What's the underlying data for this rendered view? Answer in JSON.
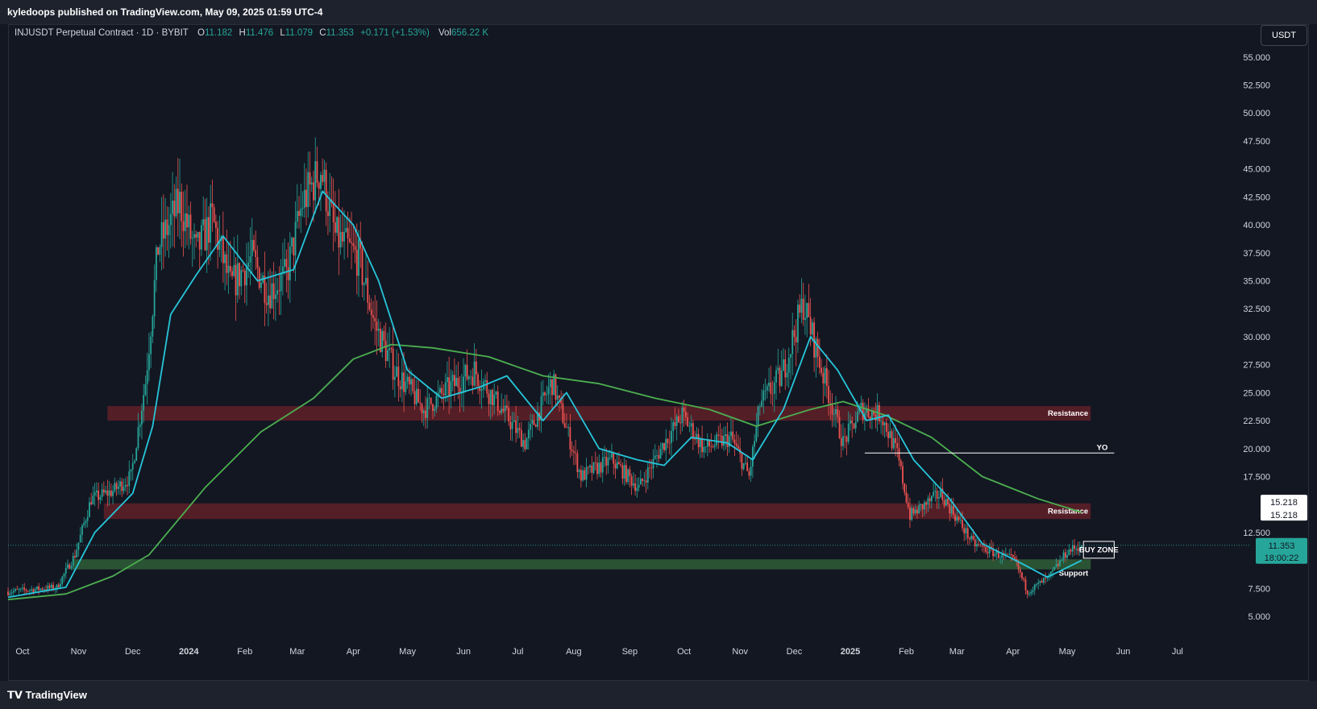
{
  "header": {
    "published": "kyledoops published on TradingView.com, May 09, 2025 01:59 UTC-4"
  },
  "legend": {
    "symbol": "INJUSDT Perpetual Contract · 1D · BYBIT",
    "o_label": "O",
    "o_value": "11.182",
    "h_label": "H",
    "h_value": "11.476",
    "l_label": "L",
    "l_value": "11.079",
    "c_label": "C",
    "c_value": "11.353",
    "change": "+0.171 (+1.53%)",
    "vol_label": "Vol",
    "vol_value": "656.22 K"
  },
  "currency_button": "USDT",
  "footer": {
    "brand": "TradingView"
  },
  "colors": {
    "background": "#131722",
    "up": "#26a69a",
    "down": "#ef5350",
    "ema_fast": "#26c6da",
    "ema_slow": "#4caf50",
    "resistance_zone": "#5c1f28",
    "support_zone": "#2e5a36",
    "price_tag": "#26a69a",
    "ma_tag": "#ffffff"
  },
  "chart_data": {
    "type": "candlestick",
    "title": "INJUSDT Perpetual Contract · 1D · BYBIT",
    "ylabel": "USDT",
    "ylim": [
      3.2,
      56.5
    ],
    "yticks": [
      "55.000",
      "52.500",
      "50.000",
      "47.500",
      "45.000",
      "42.500",
      "40.000",
      "37.500",
      "35.000",
      "32.500",
      "30.000",
      "27.500",
      "25.000",
      "22.500",
      "20.000",
      "17.500",
      "12.500",
      "7.500",
      "5.000"
    ],
    "xticks": [
      "Oct",
      "Nov",
      "Dec",
      "2024",
      "Feb",
      "Mar",
      "Apr",
      "May",
      "Jun",
      "Jul",
      "Aug",
      "Sep",
      "Oct",
      "Nov",
      "Dec",
      "2025",
      "Feb",
      "Mar",
      "Apr",
      "May",
      "Jun",
      "Jul"
    ],
    "xdomain": [
      "2023-09-23",
      "2025-07-14"
    ],
    "grid": false,
    "last_price": "11.353",
    "countdown": "18:00:22",
    "ma_tag_values": [
      "15.218",
      "15.218"
    ],
    "price_anchors": [
      {
        "date": "2023-09-23",
        "price": 7.2
      },
      {
        "date": "2023-10-20",
        "price": 7.6
      },
      {
        "date": "2023-10-30",
        "price": 10.5
      },
      {
        "date": "2023-11-08",
        "price": 15.5
      },
      {
        "date": "2023-11-20",
        "price": 16.2
      },
      {
        "date": "2023-11-30",
        "price": 17.5
      },
      {
        "date": "2023-12-08",
        "price": 26.0
      },
      {
        "date": "2023-12-15",
        "price": 38.0
      },
      {
        "date": "2023-12-27",
        "price": 42.0
      },
      {
        "date": "2024-01-05",
        "price": 37.5
      },
      {
        "date": "2024-01-14",
        "price": 40.5
      },
      {
        "date": "2024-01-24",
        "price": 34.5
      },
      {
        "date": "2024-02-05",
        "price": 37.0
      },
      {
        "date": "2024-02-14",
        "price": 34.0
      },
      {
        "date": "2024-02-24",
        "price": 35.5
      },
      {
        "date": "2024-03-04",
        "price": 42.0
      },
      {
        "date": "2024-03-14",
        "price": 45.0
      },
      {
        "date": "2024-03-22",
        "price": 39.0
      },
      {
        "date": "2024-04-04",
        "price": 37.0
      },
      {
        "date": "2024-04-13",
        "price": 31.0
      },
      {
        "date": "2024-04-24",
        "price": 27.0
      },
      {
        "date": "2024-05-10",
        "price": 23.5
      },
      {
        "date": "2024-05-25",
        "price": 25.5
      },
      {
        "date": "2024-06-07",
        "price": 27.0
      },
      {
        "date": "2024-06-20",
        "price": 24.0
      },
      {
        "date": "2024-07-05",
        "price": 20.5
      },
      {
        "date": "2024-07-20",
        "price": 26.0
      },
      {
        "date": "2024-08-05",
        "price": 17.5
      },
      {
        "date": "2024-08-22",
        "price": 19.0
      },
      {
        "date": "2024-09-06",
        "price": 16.5
      },
      {
        "date": "2024-09-20",
        "price": 20.5
      },
      {
        "date": "2024-09-30",
        "price": 23.0
      },
      {
        "date": "2024-10-12",
        "price": 20.0
      },
      {
        "date": "2024-10-27",
        "price": 21.0
      },
      {
        "date": "2024-11-06",
        "price": 17.5
      },
      {
        "date": "2024-11-12",
        "price": 24.0
      },
      {
        "date": "2024-11-24",
        "price": 26.5
      },
      {
        "date": "2024-12-06",
        "price": 33.0
      },
      {
        "date": "2024-12-18",
        "price": 26.0
      },
      {
        "date": "2024-12-28",
        "price": 20.5
      },
      {
        "date": "2025-01-07",
        "price": 23.5
      },
      {
        "date": "2025-01-18",
        "price": 23.0
      },
      {
        "date": "2025-01-27",
        "price": 19.5
      },
      {
        "date": "2025-02-03",
        "price": 14.0
      },
      {
        "date": "2025-02-20",
        "price": 16.0
      },
      {
        "date": "2025-03-10",
        "price": 11.5
      },
      {
        "date": "2025-03-24",
        "price": 10.5
      },
      {
        "date": "2025-04-02",
        "price": 10.0
      },
      {
        "date": "2025-04-09",
        "price": 7.2
      },
      {
        "date": "2025-04-21",
        "price": 8.5
      },
      {
        "date": "2025-05-01",
        "price": 10.8
      },
      {
        "date": "2025-05-09",
        "price": 11.353
      }
    ],
    "ema_fast": [
      {
        "date": "2023-09-23",
        "value": 6.7
      },
      {
        "date": "2023-10-25",
        "value": 7.6
      },
      {
        "date": "2023-11-10",
        "value": 12.5
      },
      {
        "date": "2023-12-01",
        "value": 16.0
      },
      {
        "date": "2023-12-12",
        "value": 22.0
      },
      {
        "date": "2023-12-22",
        "value": 32.0
      },
      {
        "date": "2024-01-05",
        "value": 35.5
      },
      {
        "date": "2024-01-20",
        "value": 39.0
      },
      {
        "date": "2024-02-08",
        "value": 35.0
      },
      {
        "date": "2024-02-28",
        "value": 36.0
      },
      {
        "date": "2024-03-15",
        "value": 43.0
      },
      {
        "date": "2024-04-01",
        "value": 40.0
      },
      {
        "date": "2024-04-15",
        "value": 35.0
      },
      {
        "date": "2024-05-01",
        "value": 27.0
      },
      {
        "date": "2024-05-20",
        "value": 24.5
      },
      {
        "date": "2024-06-10",
        "value": 25.5
      },
      {
        "date": "2024-06-25",
        "value": 26.5
      },
      {
        "date": "2024-07-15",
        "value": 22.5
      },
      {
        "date": "2024-07-28",
        "value": 25.0
      },
      {
        "date": "2024-08-15",
        "value": 20.0
      },
      {
        "date": "2024-09-05",
        "value": 19.0
      },
      {
        "date": "2024-09-20",
        "value": 18.5
      },
      {
        "date": "2024-10-05",
        "value": 21.0
      },
      {
        "date": "2024-10-25",
        "value": 20.5
      },
      {
        "date": "2024-11-08",
        "value": 19.0
      },
      {
        "date": "2024-11-25",
        "value": 23.5
      },
      {
        "date": "2024-12-10",
        "value": 30.0
      },
      {
        "date": "2024-12-25",
        "value": 27.0
      },
      {
        "date": "2025-01-10",
        "value": 22.5
      },
      {
        "date": "2025-01-22",
        "value": 23.0
      },
      {
        "date": "2025-02-05",
        "value": 19.0
      },
      {
        "date": "2025-02-25",
        "value": 15.5
      },
      {
        "date": "2025-03-15",
        "value": 11.5
      },
      {
        "date": "2025-04-05",
        "value": 9.8
      },
      {
        "date": "2025-04-20",
        "value": 8.5
      },
      {
        "date": "2025-05-09",
        "value": 10.0
      }
    ],
    "ema_slow": [
      {
        "date": "2023-09-23",
        "value": 6.5
      },
      {
        "date": "2023-10-25",
        "value": 7.0
      },
      {
        "date": "2023-11-20",
        "value": 8.6
      },
      {
        "date": "2023-12-10",
        "value": 10.5
      },
      {
        "date": "2024-01-10",
        "value": 16.5
      },
      {
        "date": "2024-02-10",
        "value": 21.5
      },
      {
        "date": "2024-03-10",
        "value": 24.5
      },
      {
        "date": "2024-04-01",
        "value": 28.0
      },
      {
        "date": "2024-04-22",
        "value": 29.3
      },
      {
        "date": "2024-05-15",
        "value": 29.0
      },
      {
        "date": "2024-06-15",
        "value": 28.2
      },
      {
        "date": "2024-07-15",
        "value": 26.5
      },
      {
        "date": "2024-08-15",
        "value": 25.8
      },
      {
        "date": "2024-09-15",
        "value": 24.5
      },
      {
        "date": "2024-10-15",
        "value": 23.5
      },
      {
        "date": "2024-11-10",
        "value": 22.0
      },
      {
        "date": "2024-12-10",
        "value": 23.5
      },
      {
        "date": "2024-12-28",
        "value": 24.2
      },
      {
        "date": "2025-01-20",
        "value": 23.0
      },
      {
        "date": "2025-02-15",
        "value": 21.0
      },
      {
        "date": "2025-03-15",
        "value": 17.5
      },
      {
        "date": "2025-04-15",
        "value": 15.5
      },
      {
        "date": "2025-05-09",
        "value": 14.3
      }
    ],
    "zones": [
      {
        "name": "Resistance",
        "type": "resistance",
        "from": 22.5,
        "to": 23.8,
        "start": "2023-11-17",
        "end": "2025-05-14"
      },
      {
        "name": "Resistance",
        "type": "resistance",
        "from": 13.7,
        "to": 15.1,
        "start": "2023-11-15",
        "end": "2025-05-14"
      },
      {
        "name": "Support",
        "type": "support",
        "from": 9.2,
        "to": 10.1,
        "start": "2023-10-29",
        "end": "2025-05-14"
      }
    ],
    "annotations": [
      {
        "text": "YO",
        "type": "level",
        "price": 19.6,
        "start": "2025-01-09",
        "end": "2025-05-27"
      },
      {
        "text": "BUY ZONE",
        "type": "box",
        "from": 10.2,
        "to": 11.7,
        "start": "2025-05-10",
        "end": "2025-05-27"
      }
    ]
  }
}
